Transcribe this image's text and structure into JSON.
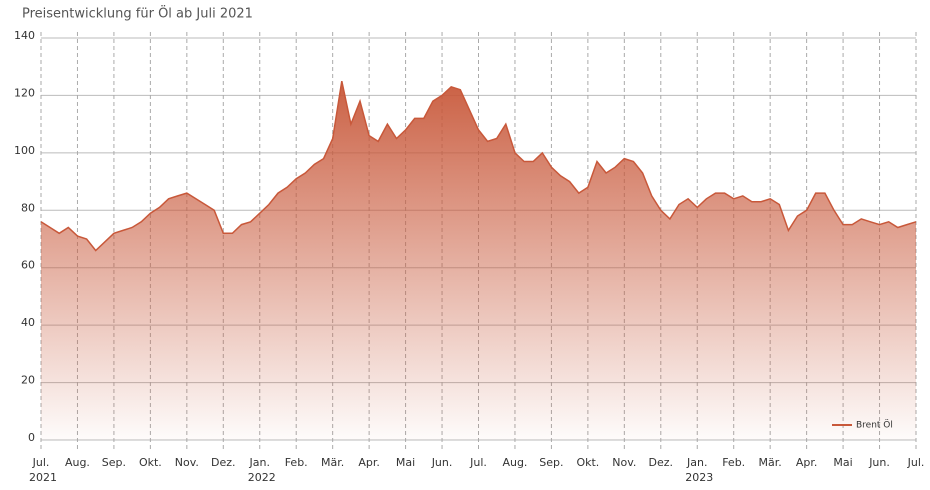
{
  "chart_data": {
    "type": "area",
    "title": "Preisentwicklung für Öl ab Juli 2021",
    "series": [
      {
        "name": "Brent Öl",
        "color": "#c8583a",
        "x": [
          0,
          0.25,
          0.5,
          0.75,
          1,
          1.25,
          1.5,
          1.75,
          2,
          2.25,
          2.5,
          2.75,
          3,
          3.25,
          3.5,
          3.75,
          4,
          4.25,
          4.5,
          4.75,
          5,
          5.25,
          5.5,
          5.75,
          6,
          6.25,
          6.5,
          6.75,
          7,
          7.25,
          7.5,
          7.75,
          8,
          8.25,
          8.5,
          8.75,
          9,
          9.25,
          9.5,
          9.75,
          10,
          10.25,
          10.5,
          10.75,
          11,
          11.25,
          11.5,
          11.75,
          12,
          12.25,
          12.5,
          12.75,
          13,
          13.25,
          13.5,
          13.75,
          14,
          14.25,
          14.5,
          14.75,
          15,
          15.25,
          15.5,
          15.75,
          16,
          16.25,
          16.5,
          16.75,
          17,
          17.25,
          17.5,
          17.75,
          18,
          18.25,
          18.5,
          18.75,
          19,
          19.25,
          19.5,
          19.75,
          20,
          20.25,
          20.5,
          20.75,
          21,
          21.25,
          21.5,
          21.75,
          22,
          22.25,
          22.5,
          22.75,
          23,
          23.25,
          23.5,
          23.75,
          24
        ],
        "values": [
          76,
          74,
          72,
          74,
          71,
          70,
          66,
          69,
          72,
          73,
          74,
          76,
          79,
          81,
          84,
          85,
          86,
          84,
          82,
          80,
          72,
          72,
          75,
          76,
          79,
          82,
          86,
          88,
          91,
          93,
          96,
          98,
          105,
          125,
          110,
          118,
          106,
          104,
          110,
          105,
          108,
          112,
          112,
          118,
          120,
          123,
          122,
          115,
          108,
          104,
          105,
          110,
          100,
          97,
          97,
          100,
          95,
          92,
          90,
          86,
          88,
          97,
          93,
          95,
          98,
          97,
          93,
          85,
          80,
          77,
          82,
          84,
          81,
          84,
          86,
          86,
          84,
          85,
          83,
          83,
          84,
          82,
          73,
          78,
          80,
          86,
          86,
          80,
          75,
          75,
          77,
          76,
          75,
          76,
          74,
          75,
          76
        ]
      }
    ],
    "xlim": [
      0,
      24
    ],
    "xticks": [
      {
        "value": 0,
        "label": "Jul."
      },
      {
        "value": 1,
        "label": "Aug."
      },
      {
        "value": 2,
        "label": "Sep."
      },
      {
        "value": 3,
        "label": "Okt."
      },
      {
        "value": 4,
        "label": "Nov."
      },
      {
        "value": 5,
        "label": "Dez."
      },
      {
        "value": 6,
        "label": "Jan."
      },
      {
        "value": 7,
        "label": "Feb."
      },
      {
        "value": 8,
        "label": "Mär."
      },
      {
        "value": 9,
        "label": "Apr."
      },
      {
        "value": 10,
        "label": "Mai"
      },
      {
        "value": 11,
        "label": "Jun."
      },
      {
        "value": 12,
        "label": "Jul."
      },
      {
        "value": 13,
        "label": "Aug."
      },
      {
        "value": 14,
        "label": "Sep."
      },
      {
        "value": 15,
        "label": "Okt."
      },
      {
        "value": 16,
        "label": "Nov."
      },
      {
        "value": 17,
        "label": "Dez."
      },
      {
        "value": 18,
        "label": "Jan."
      },
      {
        "value": 19,
        "label": "Feb."
      },
      {
        "value": 20,
        "label": "Mär."
      },
      {
        "value": 21,
        "label": "Apr."
      },
      {
        "value": 22,
        "label": "Mai"
      },
      {
        "value": 23,
        "label": "Jun."
      },
      {
        "value": 24,
        "label": "Jul."
      }
    ],
    "year_labels": [
      {
        "value": 0,
        "label": "2021"
      },
      {
        "value": 6,
        "label": "2022"
      },
      {
        "value": 18,
        "label": "2023"
      }
    ],
    "ylim": [
      0,
      140
    ],
    "yticks": [
      0,
      20,
      40,
      60,
      80,
      100,
      120,
      140
    ],
    "grid": true,
    "legend": "bottom-right"
  }
}
